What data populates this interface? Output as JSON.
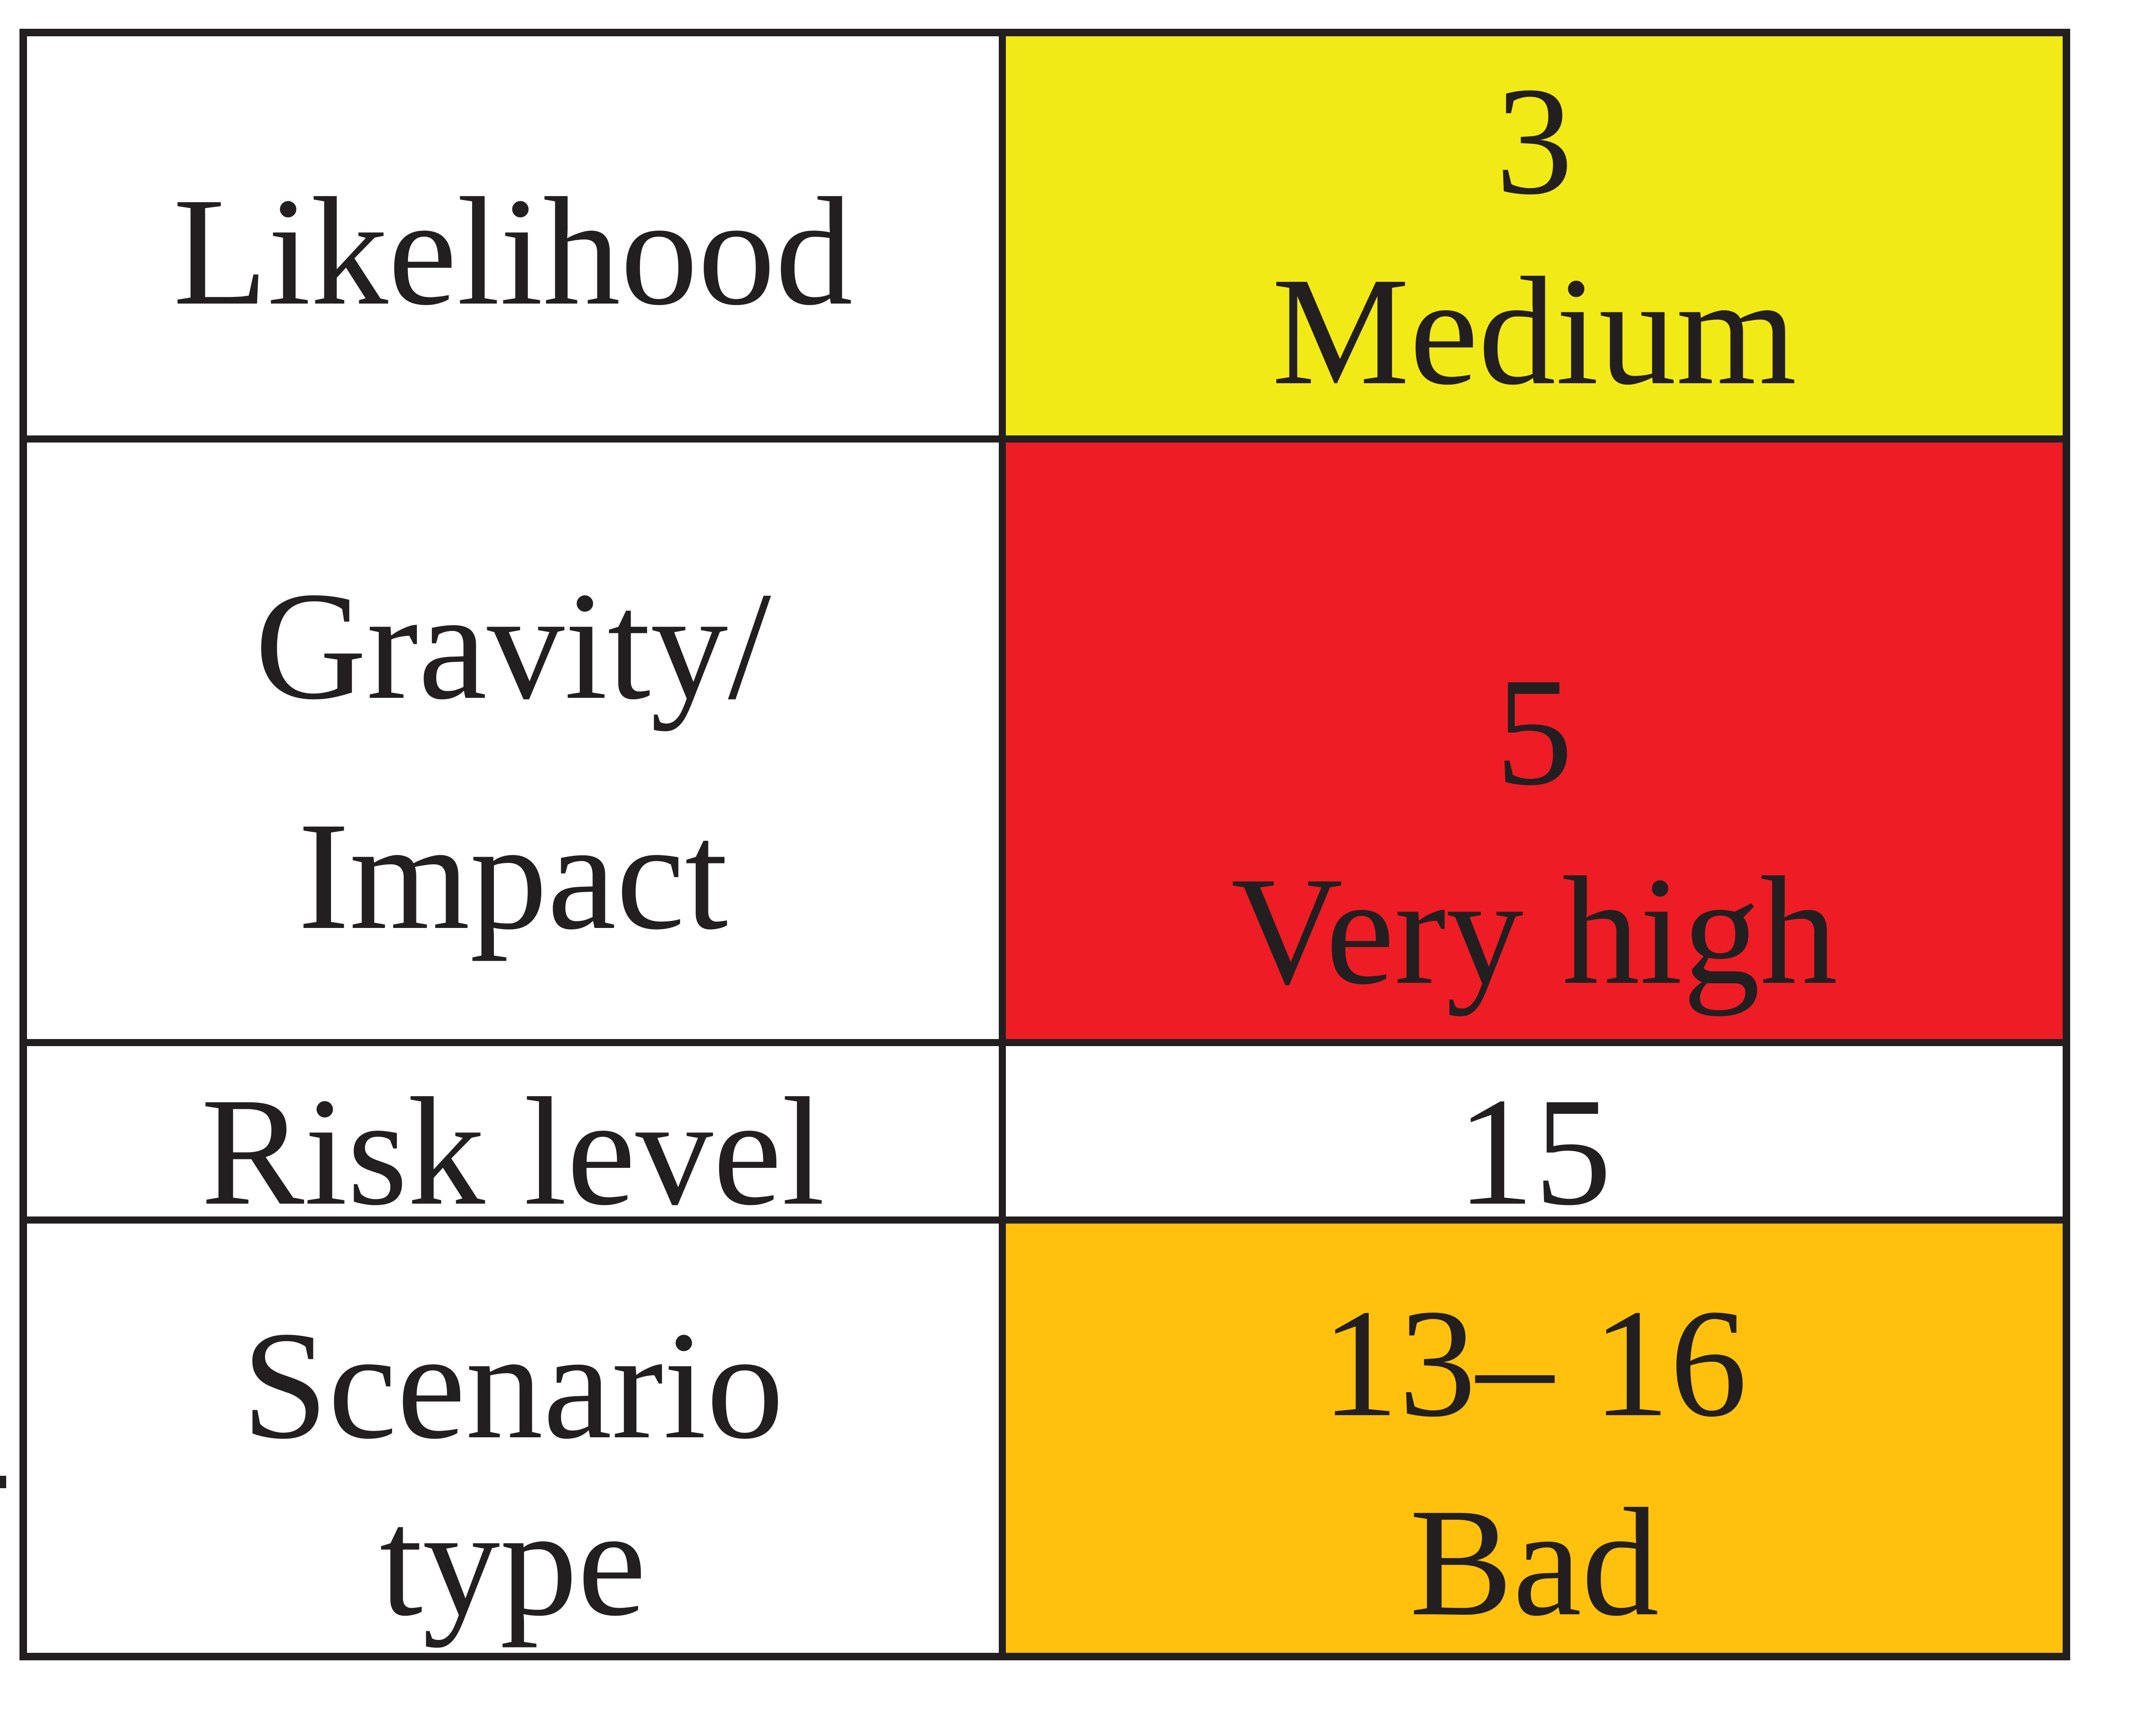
{
  "colors": {
    "ink": "#231F20",
    "likelihood_cell_yellow": "#F2EA16",
    "gravity_cell_red": "#EE1C25",
    "risk_level_cell_white": "#FFFFFF",
    "scenario_cell_orange": "#FFC10E",
    "page_background": "#FFFFFF"
  },
  "table": {
    "rows": [
      {
        "name": "likelihood",
        "label_lines": [
          "Likelihood"
        ],
        "value_lines": [
          "3",
          "Medium"
        ],
        "value_bg": "#F2EA16"
      },
      {
        "name": "gravity-impact",
        "label_lines": [
          "Gravity/",
          "Impact"
        ],
        "value_lines": [
          "5",
          "Very high"
        ],
        "value_bg": "#EE1C25"
      },
      {
        "name": "risk-level",
        "label_lines": [
          "Risk level"
        ],
        "value_lines": [
          "15"
        ],
        "value_bg": "#FFFFFF"
      },
      {
        "name": "scenario-type",
        "label_lines": [
          "Scenario",
          "type"
        ],
        "value_lines": [
          "13– 16",
          "Bad"
        ],
        "value_bg": "#FFC10E"
      }
    ]
  }
}
